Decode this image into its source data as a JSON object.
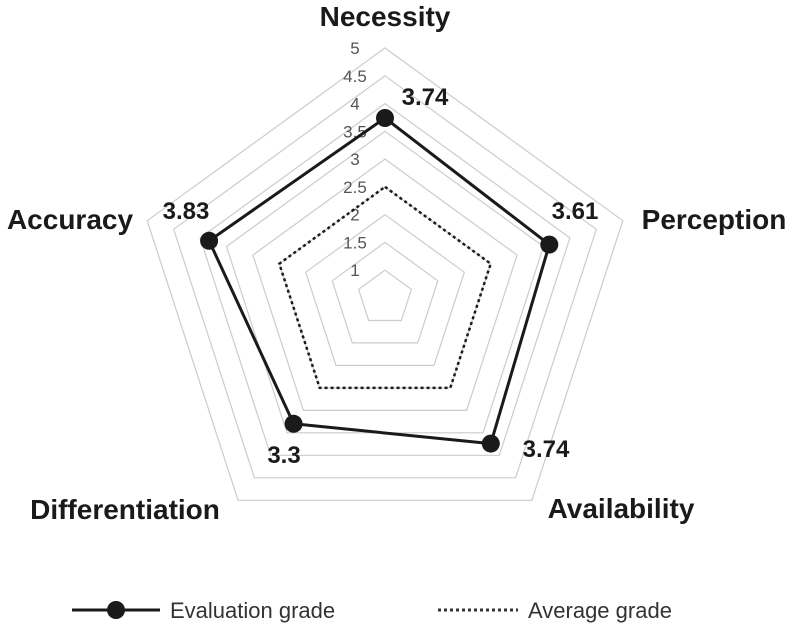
{
  "chart_data": {
    "type": "radar",
    "axes": [
      "Necessity",
      "Perception",
      "Availability",
      "Differentiation",
      "Accuracy"
    ],
    "rlim": [
      0.5,
      5
    ],
    "ticks": [
      "1",
      "1.5",
      "2",
      "2.5",
      "3",
      "3.5",
      "4",
      "4.5",
      "5"
    ],
    "tick_values": [
      1,
      1.5,
      2,
      2.5,
      3,
      3.5,
      4,
      4.5,
      5
    ],
    "series": [
      {
        "name": "Evaluation grade",
        "style": "solid",
        "values": [
          3.74,
          3.61,
          3.74,
          3.3,
          3.83
        ],
        "labels": [
          "3.74",
          "3.61",
          "3.74",
          "3.3",
          "3.83"
        ]
      },
      {
        "name": "Average grade",
        "style": "dotted",
        "values": [
          2.5,
          2.5,
          2.5,
          2.5,
          2.5
        ]
      }
    ],
    "legend_position": "bottom",
    "colors": {
      "series": "#1a1a1a",
      "grid": "#cccccc",
      "text": "#1a1a1a"
    }
  }
}
